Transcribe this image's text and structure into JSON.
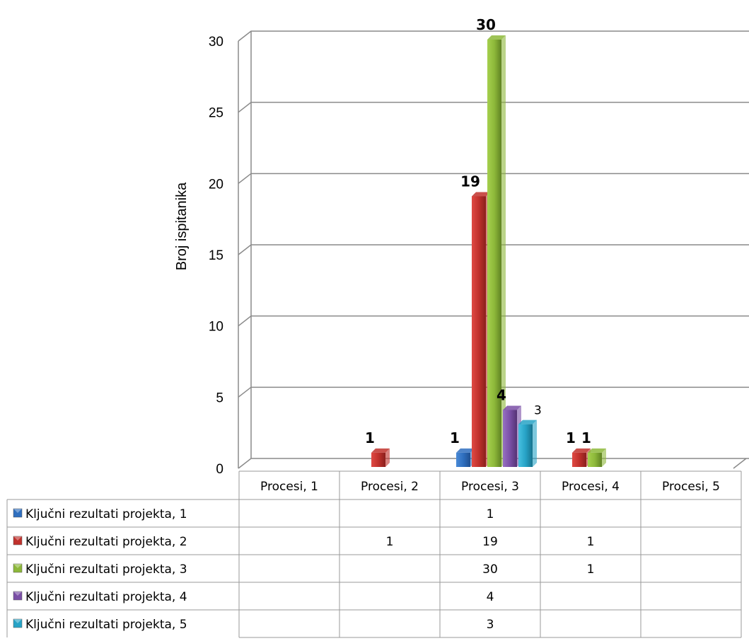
{
  "chart_data": {
    "type": "bar",
    "ylabel": "Broj ispitanika",
    "ylim": [
      0,
      30
    ],
    "yticks": [
      "0",
      "5",
      "10",
      "15",
      "20",
      "25",
      "30"
    ],
    "categories": [
      "Procesi, 1",
      "Procesi, 2",
      "Procesi, 3",
      "Procesi, 4",
      "Procesi, 5"
    ],
    "series": [
      {
        "name": "Ključni rezultati projekta, 1",
        "color": "#2f6fbf",
        "values": [
          null,
          null,
          1,
          null,
          null
        ]
      },
      {
        "name": "Ključni rezultati projekta, 2",
        "color": "#c0312c",
        "values": [
          null,
          1,
          19,
          1,
          null
        ]
      },
      {
        "name": "Ključni rezultati projekta, 3",
        "color": "#8db83a",
        "values": [
          null,
          null,
          30,
          1,
          null
        ]
      },
      {
        "name": "Ključni rezultati projekta, 4",
        "color": "#7a4fa6",
        "values": [
          null,
          null,
          4,
          null,
          null
        ]
      },
      {
        "name": "Ključni rezultati projekta, 5",
        "color": "#27a3c6",
        "values": [
          null,
          null,
          3,
          null,
          null
        ]
      }
    ],
    "data_labels": true,
    "grid": true,
    "legend": "data-table"
  }
}
